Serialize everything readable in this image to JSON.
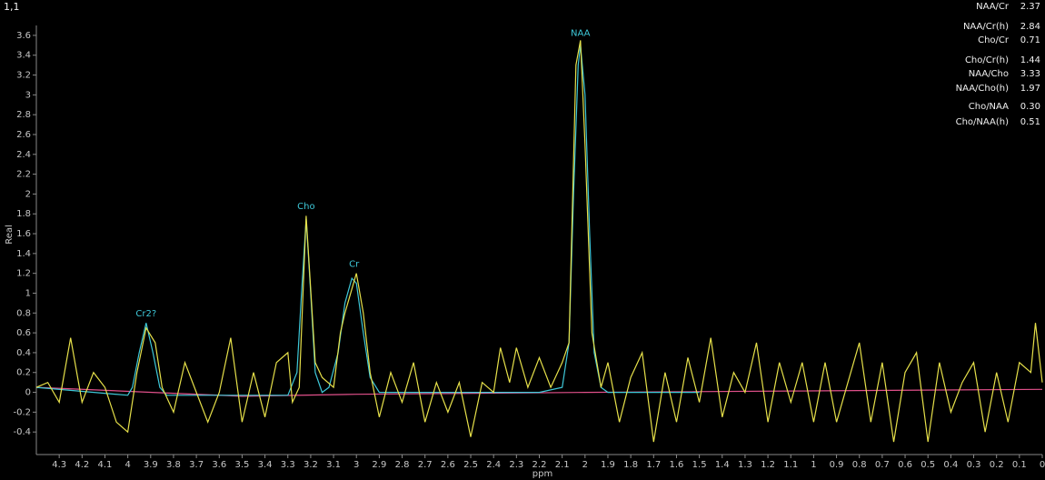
{
  "viewport": "1,1",
  "ratios": [
    {
      "label": "NAA/Cr",
      "value": "2.37"
    },
    {
      "label": "NAA/Cr(h)",
      "value": "2.84"
    },
    {
      "label": "Cho/Cr",
      "value": "0.71"
    },
    {
      "label": "Cho/Cr(h)",
      "value": "1.44"
    },
    {
      "label": "NAA/Cho",
      "value": "3.33"
    },
    {
      "label": "NAA/Cho(h)",
      "value": "1.97"
    },
    {
      "label": "Cho/NAA",
      "value": "0.30"
    },
    {
      "label": "Cho/NAA(h)",
      "value": "0.51"
    }
  ],
  "chart_data": {
    "type": "line",
    "x_label": "ppm",
    "y_label": "Real",
    "xlim": [
      4.4,
      0
    ],
    "ylim": [
      -0.6,
      3.7
    ],
    "xticks": [
      4.3,
      4.2,
      4.1,
      4,
      3.9,
      3.8,
      3.7,
      3.6,
      3.5,
      3.4,
      3.3,
      3.2,
      3.1,
      3,
      2.9,
      2.8,
      2.7,
      2.6,
      2.5,
      2.4,
      2.3,
      2.2,
      2.1,
      2,
      1.9,
      1.8,
      1.7,
      1.6,
      1.5,
      1.4,
      1.3,
      1.2,
      1.1,
      1,
      0.9,
      0.8,
      0.7,
      0.6,
      0.5,
      0.4,
      0.3,
      0.2,
      0.1,
      0
    ],
    "yticks": [
      -0.4,
      -0.2,
      0,
      0.2,
      0.4,
      0.6,
      0.8,
      1,
      1.2,
      1.4,
      1.6,
      1.8,
      2,
      2.2,
      2.4,
      2.6,
      2.8,
      3,
      3.2,
      3.4,
      3.6
    ],
    "series": [
      {
        "color": "#e6e04a",
        "x": [
          4.4,
          4.35,
          4.3,
          4.25,
          4.2,
          4.15,
          4.1,
          4.05,
          4.0,
          3.96,
          3.92,
          3.88,
          3.85,
          3.8,
          3.75,
          3.7,
          3.65,
          3.6,
          3.55,
          3.5,
          3.45,
          3.4,
          3.35,
          3.3,
          3.28,
          3.25,
          3.22,
          3.18,
          3.15,
          3.1,
          3.07,
          3.05,
          3.0,
          2.97,
          2.94,
          2.9,
          2.85,
          2.8,
          2.75,
          2.7,
          2.65,
          2.6,
          2.55,
          2.5,
          2.45,
          2.4,
          2.37,
          2.33,
          2.3,
          2.25,
          2.2,
          2.15,
          2.1,
          2.07,
          2.04,
          2.02,
          2.0,
          1.97,
          1.93,
          1.9,
          1.85,
          1.8,
          1.75,
          1.7,
          1.65,
          1.6,
          1.55,
          1.5,
          1.45,
          1.4,
          1.35,
          1.3,
          1.25,
          1.2,
          1.15,
          1.1,
          1.05,
          1.0,
          0.95,
          0.9,
          0.85,
          0.8,
          0.75,
          0.7,
          0.65,
          0.6,
          0.55,
          0.5,
          0.45,
          0.4,
          0.35,
          0.3,
          0.25,
          0.2,
          0.15,
          0.1,
          0.05,
          0.03,
          0.0
        ],
        "values": [
          0.05,
          0.1,
          -0.1,
          0.55,
          -0.1,
          0.2,
          0.05,
          -0.3,
          -0.4,
          0.2,
          0.65,
          0.5,
          0.05,
          -0.2,
          0.3,
          0.0,
          -0.3,
          0.0,
          0.55,
          -0.3,
          0.2,
          -0.25,
          0.3,
          0.4,
          -0.1,
          0.05,
          1.78,
          0.3,
          0.15,
          0.05,
          0.6,
          0.8,
          1.2,
          0.8,
          0.2,
          -0.25,
          0.2,
          -0.1,
          0.3,
          -0.3,
          0.1,
          -0.2,
          0.1,
          -0.45,
          0.1,
          0.0,
          0.45,
          0.1,
          0.45,
          0.05,
          0.35,
          0.05,
          0.3,
          0.5,
          3.3,
          3.55,
          2.5,
          0.6,
          0.05,
          0.3,
          -0.3,
          0.15,
          0.4,
          -0.5,
          0.2,
          -0.3,
          0.35,
          -0.1,
          0.55,
          -0.25,
          0.2,
          0.0,
          0.5,
          -0.3,
          0.3,
          -0.1,
          0.3,
          -0.3,
          0.3,
          -0.3,
          0.1,
          0.5,
          -0.3,
          0.3,
          -0.5,
          0.2,
          0.4,
          -0.5,
          0.3,
          -0.2,
          0.1,
          0.3,
          -0.4,
          0.2,
          -0.3,
          0.3,
          0.2,
          0.7,
          0.1
        ]
      },
      {
        "color": "#3ec8d8",
        "x": [
          4.4,
          4.0,
          3.98,
          3.95,
          3.92,
          3.89,
          3.86,
          3.83,
          3.3,
          3.26,
          3.24,
          3.22,
          3.2,
          3.18,
          3.15,
          3.12,
          3.08,
          3.05,
          3.02,
          3.0,
          2.97,
          2.94,
          2.9,
          2.2,
          2.1,
          2.07,
          2.05,
          2.03,
          2.02,
          2.0,
          1.98,
          1.96,
          1.93,
          1.9,
          1.5
        ],
        "values": [
          0.05,
          -0.03,
          0.05,
          0.4,
          0.7,
          0.4,
          0.05,
          -0.03,
          -0.03,
          0.2,
          1.0,
          1.75,
          1.0,
          0.2,
          0.0,
          0.05,
          0.4,
          0.9,
          1.15,
          1.1,
          0.6,
          0.15,
          0.0,
          0.0,
          0.05,
          0.5,
          2.0,
          3.3,
          3.5,
          3.0,
          1.6,
          0.4,
          0.05,
          0.0,
          0.0
        ]
      },
      {
        "color": "#e0508a",
        "x": [
          4.4,
          3.5,
          3.0,
          2.0,
          0.0
        ],
        "values": [
          0.05,
          -0.04,
          -0.02,
          0.0,
          0.03
        ]
      }
    ],
    "annotations": [
      {
        "text": "Cr2?",
        "x": 3.92,
        "y": 0.72
      },
      {
        "text": "Cho",
        "x": 3.22,
        "y": 1.8
      },
      {
        "text": "Cr",
        "x": 3.01,
        "y": 1.22
      },
      {
        "text": "NAA",
        "x": 2.02,
        "y": 3.55
      }
    ]
  }
}
